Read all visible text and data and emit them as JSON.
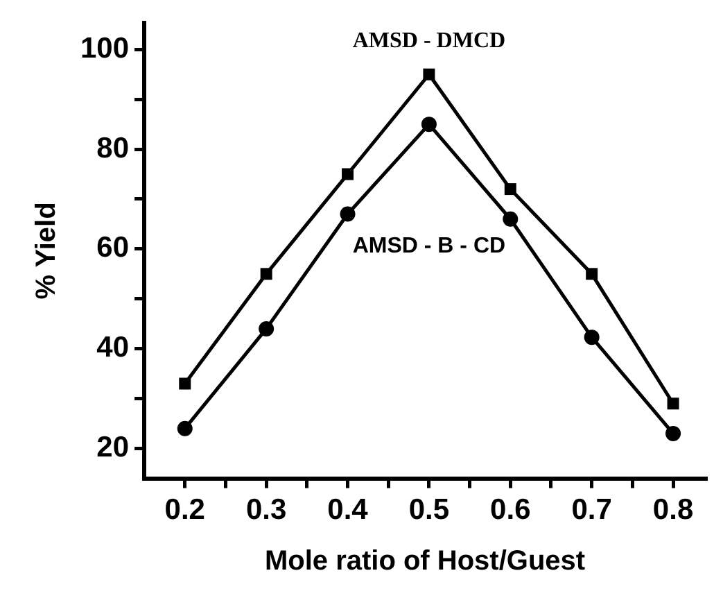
{
  "chart_data": {
    "type": "line",
    "xlabel": "Mole ratio of Host/Guest",
    "ylabel": "% Yield",
    "x": [
      0.2,
      0.3,
      0.4,
      0.5,
      0.6,
      0.7,
      0.8
    ],
    "series": [
      {
        "name": "AMSD - DMCD",
        "color": "#000000",
        "marker": "square",
        "values": [
          33,
          55,
          75,
          95,
          72,
          55,
          29
        ]
      },
      {
        "name": "AMSD - B - CD",
        "color": "#000000",
        "marker": "circle",
        "values": [
          24,
          44,
          67,
          85,
          66,
          42.3,
          23
        ]
      }
    ],
    "xlim": [
      0.15,
      0.84
    ],
    "ylim": [
      14,
      105.3
    ],
    "xticks": [
      0.2,
      {
        "value": 0.25,
        "label": null
      },
      0.3,
      {
        "value": 0.35,
        "label": null
      },
      0.4,
      {
        "value": 0.45,
        "label": null
      },
      0.5,
      {
        "value": 0.55,
        "label": null
      },
      0.6,
      {
        "value": 0.65,
        "label": null
      },
      0.7,
      {
        "value": 0.75,
        "label": null
      },
      0.8
    ],
    "yticks": [
      20,
      {
        "value": 30,
        "label": null
      },
      40,
      {
        "value": 50,
        "label": null
      },
      60,
      {
        "value": 70,
        "label": null
      },
      80,
      {
        "value": 90,
        "label": null
      },
      100
    ],
    "grid": false,
    "legend": false,
    "line_style": "solid"
  }
}
